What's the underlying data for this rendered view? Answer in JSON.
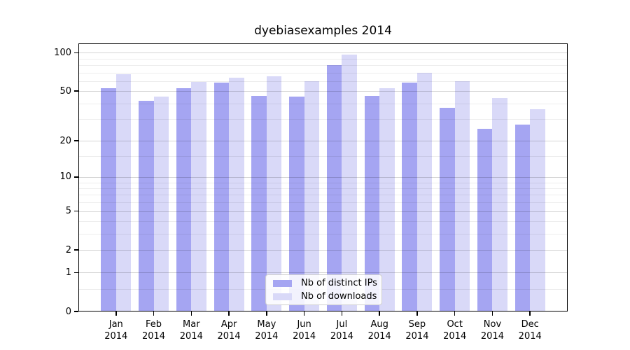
{
  "title": "dyebiasexamples 2014",
  "chart_data": {
    "type": "bar",
    "title": "dyebiasexamples 2014",
    "categories": [
      "Jan 2014",
      "Feb 2014",
      "Mar 2014",
      "Apr 2014",
      "May 2014",
      "Jun 2014",
      "Jul 2014",
      "Aug 2014",
      "Sep 2014",
      "Oct 2014",
      "Nov 2014",
      "Dec 2014"
    ],
    "series": [
      {
        "name": "Nb of distinct IPs",
        "slug": "distinct-ips",
        "color": "#a5a5f2",
        "values": [
          53,
          42,
          53,
          58,
          46,
          45,
          80,
          46,
          58,
          37,
          25,
          27
        ]
      },
      {
        "name": "Nb of downloads",
        "slug": "downloads",
        "color": "#d9d9f8",
        "values": [
          68,
          45,
          59,
          64,
          65,
          60,
          97,
          53,
          70,
          60,
          44,
          36
        ]
      }
    ],
    "xlabel": "",
    "ylabel": "",
    "yscale": "log1p",
    "ylim": [
      0,
      119
    ],
    "y_major_ticks": [
      0,
      1,
      2,
      5,
      10,
      20,
      50,
      100
    ],
    "y_minor_ticks": [
      0.5,
      3,
      4,
      6,
      7,
      8,
      9,
      15,
      30,
      40,
      60,
      70,
      80,
      90
    ],
    "grid": true,
    "legend_position": "lower center"
  },
  "colors": {
    "bar_distinct_ips": "#a5a5f2",
    "bar_downloads": "#d9d9f8",
    "grid_major": "#d5d5d5",
    "grid_minor": "#ececec",
    "axis": "#000000",
    "background": "#ffffff"
  }
}
